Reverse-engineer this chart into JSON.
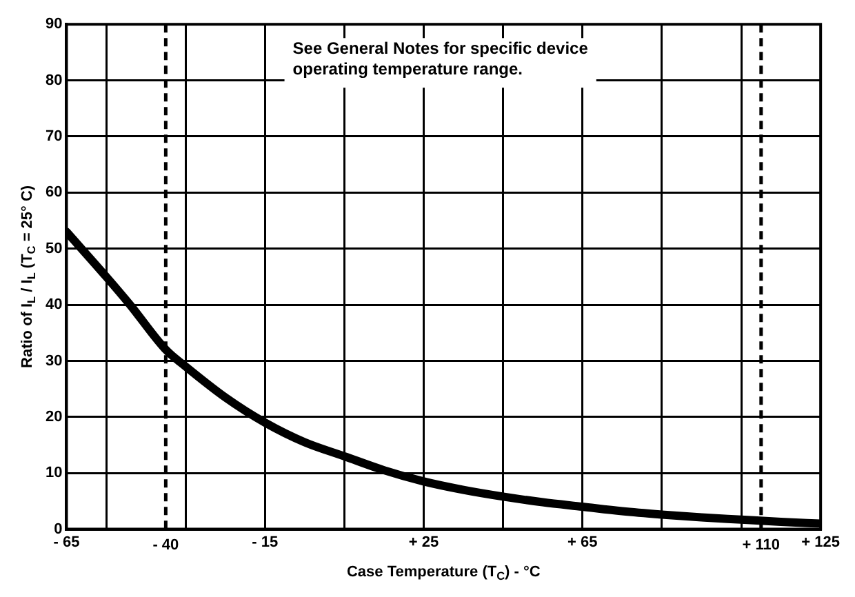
{
  "chart_data": {
    "type": "line",
    "xlabel": "Case Temperature (T$_{C}$) - °C",
    "ylabel": "Ratio of I$_{L}$ / I$_{L}$ (T$_{C}$ = 25° C)",
    "x": [
      -65,
      -55,
      -49,
      -40,
      -35,
      -25,
      -15,
      -5,
      5,
      15,
      25,
      35,
      45,
      55,
      65,
      75,
      85,
      95,
      105,
      115,
      125
    ],
    "series": [
      {
        "color": "#000000",
        "values": [
          53,
          45,
          40,
          32,
          29,
          23.5,
          19,
          15.5,
          13,
          10.5,
          8.5,
          7,
          5.8,
          4.8,
          4,
          3.2,
          2.6,
          2.1,
          1.7,
          1.3,
          1
        ]
      }
    ],
    "xlim": [
      -65,
      125
    ],
    "xticks": [
      {
        "value": -65,
        "label": "- 65"
      },
      {
        "value": -55,
        "label": null
      },
      {
        "value": -35,
        "label": null
      },
      {
        "value": -15,
        "label": "- 15"
      },
      {
        "value": 5,
        "label": null
      },
      {
        "value": 25,
        "label": "+ 25"
      },
      {
        "value": 45,
        "label": null
      },
      {
        "value": 65,
        "label": "+ 65"
      },
      {
        "value": 85,
        "label": null
      },
      {
        "value": 105,
        "label": null
      },
      {
        "value": 125,
        "label": "+ 125"
      }
    ],
    "ylim": [
      0,
      90
    ],
    "yticks": [
      0,
      10,
      20,
      30,
      40,
      50,
      60,
      70,
      80,
      90
    ],
    "ref_lines": [
      {
        "axis": "x",
        "value": -40,
        "label": "- 40",
        "line_style": "dashed"
      },
      {
        "axis": "x",
        "value": 110,
        "label": "+ 110",
        "line_style": "dashed"
      }
    ],
    "annotations": [
      "See General Notes for specific device operating temperature range."
    ],
    "grid": true,
    "legend": false
  }
}
